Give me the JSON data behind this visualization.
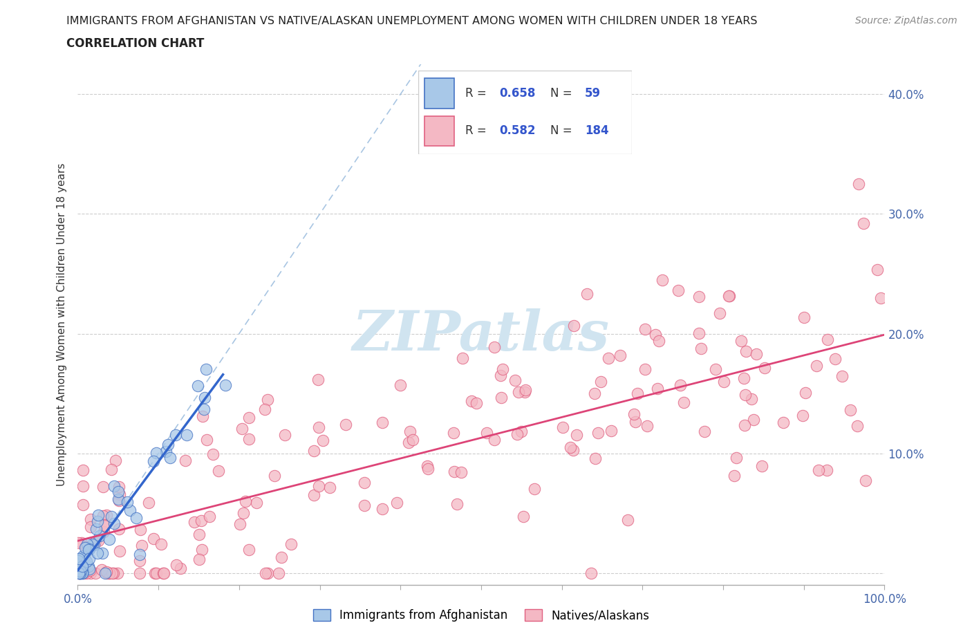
{
  "title_line1": "IMMIGRANTS FROM AFGHANISTAN VS NATIVE/ALASKAN UNEMPLOYMENT AMONG WOMEN WITH CHILDREN UNDER 18 YEARS",
  "title_line2": "CORRELATION CHART",
  "source_text": "Source: ZipAtlas.com",
  "ylabel": "Unemployment Among Women with Children Under 18 years",
  "xmin": 0.0,
  "xmax": 1.0,
  "ymin": -0.01,
  "ymax": 0.425,
  "color_afghan": "#A8C8E8",
  "color_native": "#F4B8C4",
  "color_afghan_edge": "#4472C4",
  "color_native_edge": "#E06080",
  "color_afghan_line": "#3366CC",
  "color_native_line": "#DD4477",
  "color_diagonal": "#99BBDD",
  "watermark_color": "#D0E4F0",
  "legend_r1_val": "0.658",
  "legend_n1_val": "59",
  "legend_r2_val": "0.582",
  "legend_n2_val": "184"
}
